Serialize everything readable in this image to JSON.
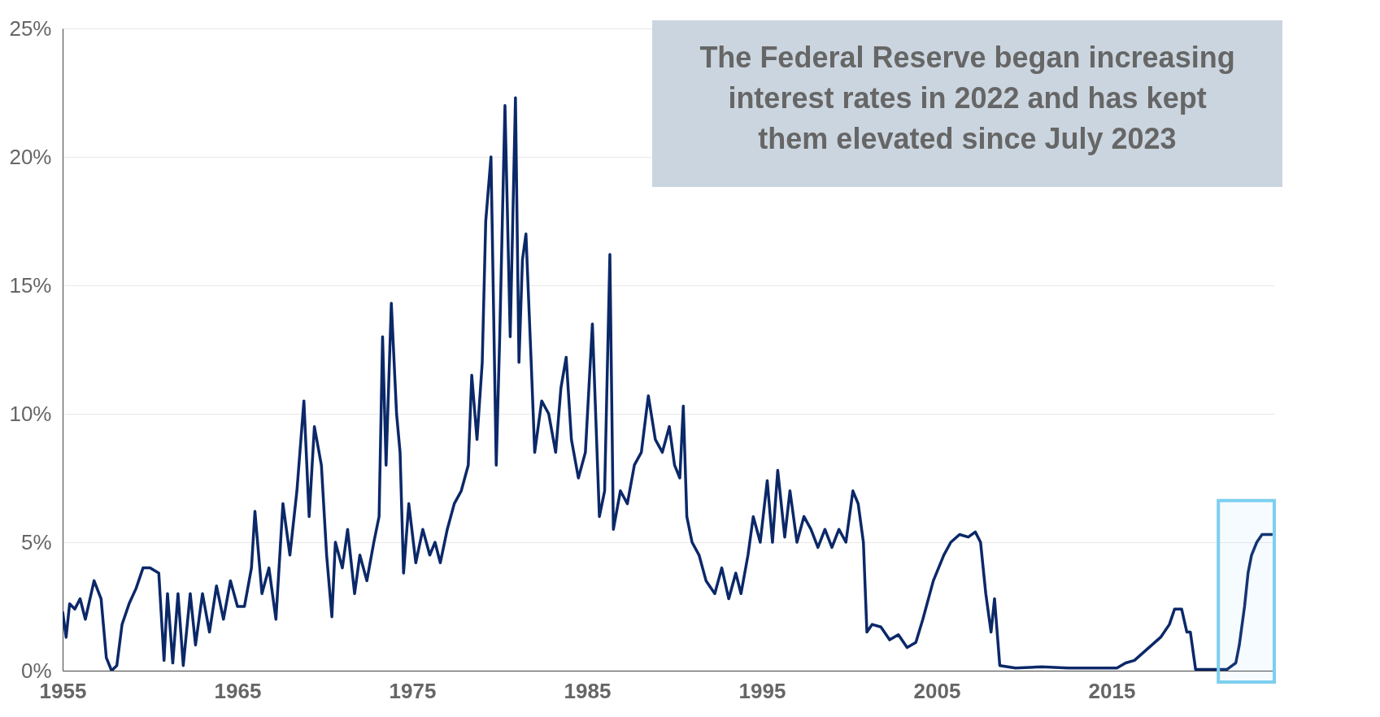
{
  "chart_data": {
    "type": "line",
    "annotations": [
      "The Federal Reserve began increasing interest rates in 2022 and has kept them elevated since July 2023"
    ],
    "x": [
      1955.0,
      1955.2,
      1955.4,
      1955.7,
      1956.0,
      1956.3,
      1956.8,
      1957.2,
      1957.5,
      1957.8,
      1958.1,
      1958.4,
      1958.8,
      1959.2,
      1959.6,
      1960.0,
      1960.5,
      1960.8,
      1961.0,
      1961.3,
      1961.6,
      1961.9,
      1962.3,
      1962.6,
      1963.0,
      1963.4,
      1963.8,
      1964.2,
      1964.6,
      1965.0,
      1965.4,
      1965.8,
      1966.0,
      1966.4,
      1966.8,
      1967.2,
      1967.6,
      1968.0,
      1968.4,
      1968.8,
      1969.1,
      1969.4,
      1969.8,
      1970.1,
      1970.4,
      1970.6,
      1971.0,
      1971.3,
      1971.7,
      1972.0,
      1972.4,
      1972.8,
      1973.1,
      1973.3,
      1973.5,
      1973.8,
      1974.1,
      1974.3,
      1974.5,
      1974.8,
      1975.2,
      1975.6,
      1976.0,
      1976.3,
      1976.6,
      1977.0,
      1977.4,
      1977.8,
      1978.2,
      1978.4,
      1978.7,
      1979.0,
      1979.2,
      1979.5,
      1979.8,
      1980.0,
      1980.3,
      1980.6,
      1980.9,
      1981.1,
      1981.3,
      1981.5,
      1981.8,
      1982.0,
      1982.4,
      1982.8,
      1983.2,
      1983.5,
      1983.8,
      1984.1,
      1984.5,
      1984.9,
      1985.3,
      1985.7,
      1986.0,
      1986.3,
      1986.5,
      1986.9,
      1987.3,
      1987.7,
      1988.1,
      1988.5,
      1988.9,
      1989.3,
      1989.7,
      1990.0,
      1990.3,
      1990.5,
      1990.7,
      1991.0,
      1991.4,
      1991.8,
      1992.3,
      1992.7,
      1993.1,
      1993.5,
      1993.8,
      1994.2,
      1994.5,
      1994.9,
      1995.3,
      1995.6,
      1995.9,
      1996.3,
      1996.6,
      1997.0,
      1997.4,
      1997.8,
      1998.2,
      1998.6,
      1999.0,
      1999.4,
      1999.8,
      2000.2,
      2000.5,
      2000.8,
      2001.0,
      2001.3,
      2001.8,
      2002.3,
      2002.8,
      2003.3,
      2003.8,
      2004.2,
      2004.8,
      2005.4,
      2005.8,
      2006.3,
      2006.8,
      2007.2,
      2007.5,
      2007.8,
      2008.1,
      2008.3,
      2008.6,
      2009.5,
      2011.0,
      2012.5,
      2014.0,
      2015.3,
      2015.8,
      2016.3,
      2016.8,
      2017.3,
      2017.8,
      2018.3,
      2018.6,
      2019.0,
      2019.3,
      2019.5,
      2019.8,
      2020.5,
      2021.6,
      2021.9,
      2022.1,
      2022.3,
      2022.6,
      2022.8,
      2023.0,
      2023.3,
      2023.6,
      2024.2
    ],
    "values": [
      2.3,
      1.3,
      2.6,
      2.4,
      2.8,
      2.0,
      3.5,
      2.8,
      0.5,
      0.0,
      0.2,
      1.8,
      2.6,
      3.2,
      4.0,
      4.0,
      3.8,
      0.4,
      3.0,
      0.3,
      3.0,
      0.2,
      3.0,
      1.0,
      3.0,
      1.5,
      3.3,
      2.0,
      3.5,
      2.5,
      2.5,
      4.0,
      6.2,
      3.0,
      4.0,
      2.0,
      6.5,
      4.5,
      7.0,
      10.5,
      6.0,
      9.5,
      8.0,
      4.5,
      2.1,
      5.0,
      4.0,
      5.5,
      3.0,
      4.5,
      3.5,
      5.0,
      6.0,
      13.0,
      8.0,
      14.3,
      10.0,
      8.5,
      3.8,
      6.5,
      4.2,
      5.5,
      4.5,
      5.0,
      4.2,
      5.5,
      6.5,
      7.0,
      8.0,
      11.5,
      9.0,
      12.0,
      17.5,
      20.0,
      8.0,
      13.0,
      22.0,
      13.0,
      22.3,
      12.0,
      16.0,
      17.0,
      12.0,
      8.5,
      10.5,
      10.0,
      8.5,
      11.0,
      12.2,
      9.0,
      7.5,
      8.5,
      13.5,
      6.0,
      7.0,
      16.2,
      5.5,
      7.0,
      6.5,
      8.0,
      8.5,
      10.7,
      9.0,
      8.5,
      9.5,
      8.0,
      7.5,
      10.3,
      6.0,
      5.0,
      4.5,
      3.5,
      3.0,
      4.0,
      2.8,
      3.8,
      3.0,
      4.5,
      6.0,
      5.0,
      7.4,
      5.0,
      7.8,
      5.2,
      7.0,
      5.0,
      6.0,
      5.5,
      4.8,
      5.5,
      4.8,
      5.5,
      5.0,
      7.0,
      6.5,
      5.0,
      1.5,
      1.8,
      1.7,
      1.2,
      1.4,
      0.9,
      1.1,
      2.0,
      3.5,
      4.5,
      5.0,
      5.3,
      5.2,
      5.4,
      5.0,
      3.0,
      1.5,
      2.8,
      0.2,
      0.1,
      0.15,
      0.1,
      0.1,
      0.1,
      0.3,
      0.4,
      0.7,
      1.0,
      1.3,
      1.8,
      2.4,
      2.4,
      1.5,
      1.5,
      0.05,
      0.05,
      0.05,
      0.2,
      0.3,
      1.0,
      2.5,
      3.8,
      4.5,
      5.0,
      5.3,
      5.3
    ],
    "color": "#0b2868",
    "xlim": [
      1955,
      2024.3
    ],
    "xticks": [
      1955,
      1965,
      1975,
      1985,
      1995,
      2005,
      2015
    ],
    "ylim": [
      0,
      25
    ],
    "yticks": [
      {
        "value": 0,
        "label": "0%"
      },
      {
        "value": 5,
        "label": "5%"
      },
      {
        "value": 10,
        "label": "10%"
      },
      {
        "value": 15,
        "label": "15%"
      },
      {
        "value": 20,
        "label": "20%"
      },
      {
        "value": 25,
        "label": "25%"
      }
    ],
    "grid": "y",
    "bands": [
      {
        "axis": "x",
        "from": 2021.1,
        "to": 2024.3,
        "color": "#7dcfef"
      }
    ]
  }
}
